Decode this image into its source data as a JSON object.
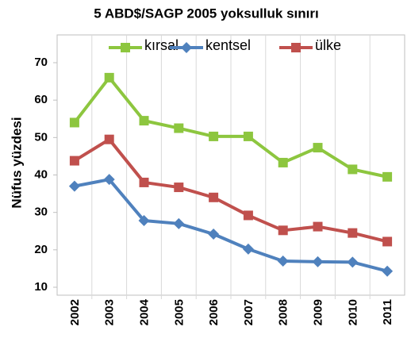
{
  "chart_data": {
    "type": "line",
    "title": "5 ABD$/SAGP 2005 yoksulluk sınırı",
    "y_label": "Nüfus yüzdesi",
    "categories": [
      "2002",
      "2003",
      "2004",
      "2005",
      "2006",
      "2007",
      "2008",
      "2009",
      "2010",
      "2011"
    ],
    "series": [
      {
        "name": "kırsal",
        "color": "#8dc63f",
        "marker": "square",
        "values": [
          54,
          66,
          54.5,
          52.5,
          50.3,
          50.3,
          43.3,
          47.3,
          41.5,
          39.5
        ]
      },
      {
        "name": "kentsel",
        "color": "#4f81bd",
        "marker": "diamond",
        "values": [
          37,
          38.8,
          27.8,
          27,
          24.2,
          20.2,
          17,
          16.8,
          16.7,
          14.3
        ]
      },
      {
        "name": "ülke",
        "color": "#c0504d",
        "marker": "square",
        "values": [
          43.8,
          49.5,
          38,
          36.7,
          34,
          29.2,
          25.2,
          26.2,
          24.5,
          22.2
        ]
      }
    ],
    "ylim": [
      10,
      70
    ],
    "yticks": [
      10,
      20,
      30,
      40,
      50,
      60,
      70
    ],
    "legend": "top"
  }
}
